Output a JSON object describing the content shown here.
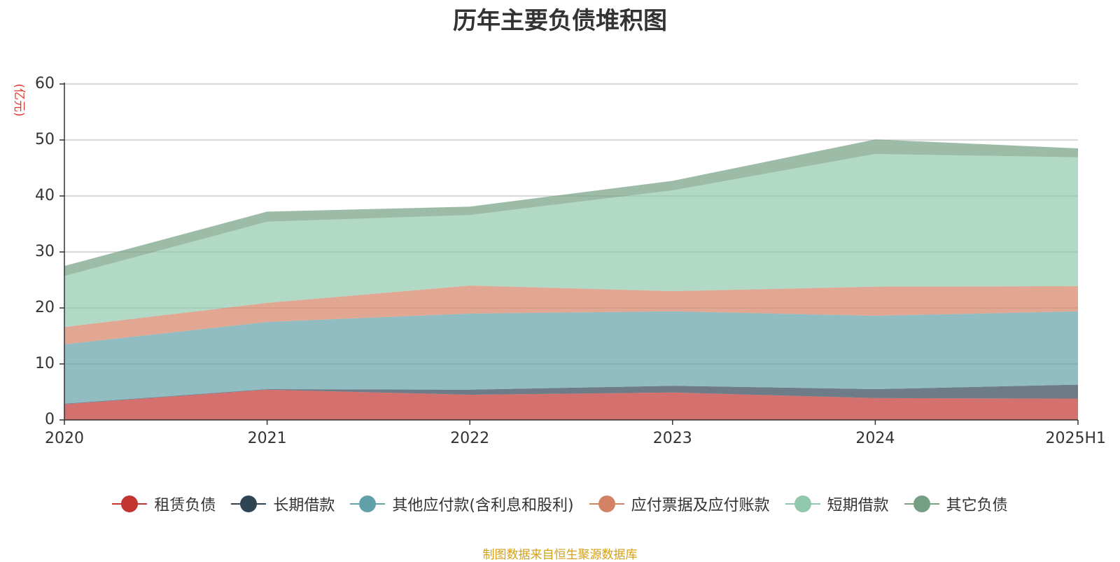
{
  "chart_data": {
    "type": "area",
    "stacked": true,
    "title": "历年主要负债堆积图",
    "ylabel": "(亿元)",
    "xlabel": "",
    "categories": [
      "2020",
      "2021",
      "2022",
      "2023",
      "2024",
      "2025H1"
    ],
    "ylim": [
      0,
      60
    ],
    "yticks": [
      0,
      10,
      20,
      30,
      40,
      50,
      60
    ],
    "grid": true,
    "legend_position": "bottom",
    "series": [
      {
        "name": "租赁负债",
        "color": "#c23531",
        "values": [
          2.8,
          5.4,
          4.5,
          4.9,
          3.9,
          3.8
        ]
      },
      {
        "name": "长期借款",
        "color": "#2f4554",
        "values": [
          0.1,
          0.1,
          0.9,
          1.2,
          1.6,
          2.5
        ]
      },
      {
        "name": "其他应付款(含利息和股利)",
        "color": "#61a0a8",
        "values": [
          10.6,
          12.0,
          13.6,
          13.3,
          13.1,
          13.1
        ]
      },
      {
        "name": "应付票据及应付账款",
        "color": "#d48265",
        "values": [
          3.1,
          3.4,
          5.0,
          3.6,
          5.2,
          4.5
        ]
      },
      {
        "name": "短期借款",
        "color": "#91c7ae",
        "values": [
          9.1,
          14.5,
          12.6,
          18.0,
          23.7,
          23.0
        ]
      },
      {
        "name": "其它负债",
        "color": "#749f83",
        "values": [
          1.8,
          1.8,
          1.5,
          1.7,
          2.6,
          1.6
        ]
      }
    ]
  },
  "source_note": "制图数据来自恒生聚源数据库"
}
